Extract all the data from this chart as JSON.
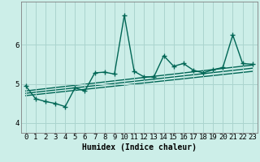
{
  "xlabel": "Humidex (Indice chaleur)",
  "ylabel": "",
  "bg_color": "#cceee8",
  "grid_color": "#aad4ce",
  "line_color": "#006655",
  "xlim": [
    -0.5,
    23.5
  ],
  "ylim": [
    3.75,
    7.1
  ],
  "xticks": [
    0,
    1,
    2,
    3,
    4,
    5,
    6,
    7,
    8,
    9,
    10,
    11,
    12,
    13,
    14,
    15,
    16,
    17,
    18,
    19,
    20,
    21,
    22,
    23
  ],
  "yticks": [
    4,
    5,
    6
  ],
  "main_x": [
    0,
    1,
    2,
    3,
    4,
    5,
    6,
    7,
    8,
    9,
    10,
    11,
    12,
    13,
    14,
    15,
    16,
    17,
    18,
    19,
    20,
    21,
    22,
    23
  ],
  "main_y": [
    4.95,
    4.62,
    4.55,
    4.5,
    4.42,
    4.9,
    4.82,
    5.28,
    5.3,
    5.25,
    6.75,
    5.32,
    5.18,
    5.18,
    5.72,
    5.45,
    5.52,
    5.35,
    5.28,
    5.36,
    5.42,
    6.25,
    5.52,
    5.5
  ],
  "reg_lines": [
    {
      "x0": 0,
      "y0": 4.82,
      "x1": 23,
      "y1": 5.48
    },
    {
      "x0": 0,
      "y0": 4.76,
      "x1": 23,
      "y1": 5.4
    },
    {
      "x0": 0,
      "y0": 4.7,
      "x1": 23,
      "y1": 5.32
    }
  ],
  "marker": "+",
  "markersize": 4,
  "linewidth": 1.0,
  "label_fontsize": 7,
  "tick_fontsize": 6.5
}
